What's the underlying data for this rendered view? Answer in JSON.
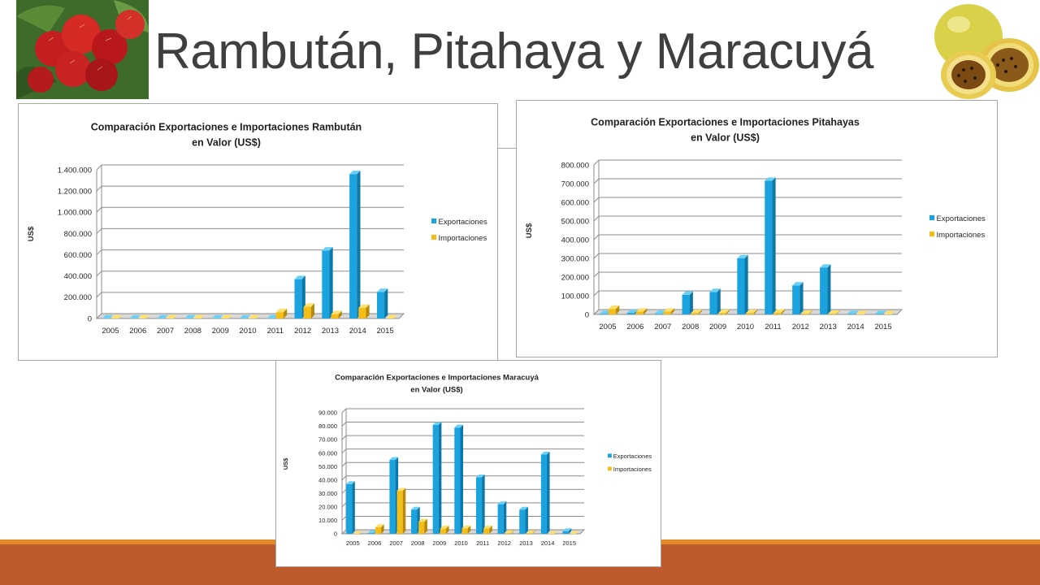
{
  "slide": {
    "title": "Rambután, Pitahaya y Maracuyá"
  },
  "colors": {
    "export": "#1ba3e0",
    "export_side": "#0d78a8",
    "export_top": "#6cd0f5",
    "import": "#f4bd18",
    "import_side": "#b88a0a",
    "import_top": "#ffe06a",
    "grid": "#8c8c8c",
    "footer_thin": "#e08a2a",
    "footer_thick": "#bf5a2d"
  },
  "icons": {
    "left_photo": "rambutan-photo",
    "right_photo": "passion-fruit-photo"
  },
  "chart_data": [
    {
      "id": "rambutan",
      "type": "bar",
      "title": [
        "Comparación Exportaciones e Importaciones Rambután",
        "en Valor (US$)"
      ],
      "ylabel": "US$",
      "xlabel": "",
      "categories": [
        "2005",
        "2006",
        "2007",
        "2008",
        "2009",
        "2010",
        "2011",
        "2012",
        "2013",
        "2014",
        "2015"
      ],
      "series": [
        {
          "name": "Exportaciones",
          "values": [
            0,
            0,
            0,
            0,
            0,
            0,
            0,
            370000,
            640000,
            1360000,
            250000
          ]
        },
        {
          "name": "Importaciones",
          "values": [
            0,
            0,
            0,
            0,
            0,
            0,
            60000,
            110000,
            40000,
            100000,
            0
          ]
        }
      ],
      "ylim": [
        0,
        1400000
      ],
      "yticks": [
        0,
        200000,
        400000,
        600000,
        800000,
        1000000,
        1200000,
        1400000
      ],
      "ytick_labels": [
        "0",
        "200.000",
        "400.000",
        "600.000",
        "800.000",
        "1.000.000",
        "1.200.000",
        "1.400.000"
      ],
      "grid": true,
      "legend": "right"
    },
    {
      "id": "pitahaya",
      "type": "bar",
      "title": [
        "Comparación Exportaciones e Importaciones Pitahayas",
        "en Valor (US$)"
      ],
      "ylabel": "US$",
      "xlabel": "",
      "categories": [
        "2005",
        "2006",
        "2007",
        "2008",
        "2009",
        "2010",
        "2011",
        "2012",
        "2013",
        "2014",
        "2015"
      ],
      "series": [
        {
          "name": "Exportaciones",
          "values": [
            2000,
            8000,
            3000,
            105000,
            120000,
            300000,
            715000,
            155000,
            250000,
            2000,
            2000
          ]
        },
        {
          "name": "Importaciones",
          "values": [
            30000,
            15000,
            15000,
            8000,
            8000,
            8000,
            10000,
            4000,
            4000,
            0,
            0
          ]
        }
      ],
      "ylim": [
        0,
        800000
      ],
      "yticks": [
        0,
        100000,
        200000,
        300000,
        400000,
        500000,
        600000,
        700000,
        800000
      ],
      "ytick_labels": [
        "0",
        "100.000",
        "200.000",
        "300.000",
        "400.000",
        "500.000",
        "600.000",
        "700.000",
        "800.000"
      ],
      "grid": true,
      "legend": "right"
    },
    {
      "id": "maracuya",
      "type": "bar",
      "title": [
        "Comparación Exportaciones e Importaciones Maracuyá",
        "en Valor (US$)"
      ],
      "ylabel": "US$",
      "xlabel": "",
      "categories": [
        "2005",
        "2006",
        "2007",
        "2008",
        "2009",
        "2010",
        "2011",
        "2012",
        "2013",
        "2014",
        "2015"
      ],
      "series": [
        {
          "name": "Exportaciones",
          "values": [
            37000,
            500,
            55000,
            18000,
            81000,
            79000,
            42000,
            22000,
            18000,
            59000,
            2000
          ]
        },
        {
          "name": "Importaciones",
          "values": [
            0,
            5000,
            32000,
            9000,
            4000,
            4000,
            4000,
            500,
            500,
            0,
            0
          ]
        }
      ],
      "ylim": [
        0,
        90000
      ],
      "yticks": [
        0,
        10000,
        20000,
        30000,
        40000,
        50000,
        60000,
        70000,
        80000,
        90000
      ],
      "ytick_labels": [
        "0",
        "10.000",
        "20.000",
        "30.000",
        "40.000",
        "50.000",
        "60.000",
        "70.000",
        "80.000",
        "90.000"
      ],
      "grid": true,
      "legend": "right"
    }
  ]
}
